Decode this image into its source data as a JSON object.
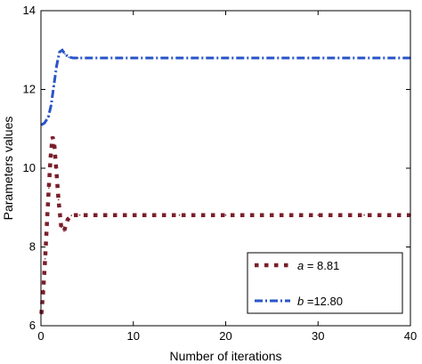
{
  "chart_data": {
    "type": "line",
    "title": "",
    "xlabel": "Number of iterations",
    "ylabel": "Parameters values",
    "xlim": [
      0,
      40
    ],
    "ylim": [
      6,
      14
    ],
    "xticks": [
      0,
      10,
      20,
      30,
      40
    ],
    "yticks": [
      6,
      8,
      10,
      12,
      14
    ],
    "grid": false,
    "legend_position": "bottom-right",
    "series": [
      {
        "name_var": "a",
        "name_rest": " = 8.81",
        "color": "#7a1f2b",
        "style": "dotted-squares",
        "x": [
          0.05,
          0.25,
          0.45,
          0.65,
          0.85,
          1.05,
          1.25,
          1.45,
          1.65,
          1.9,
          2.2,
          2.5,
          2.9,
          3.3,
          3.7,
          4.2,
          6,
          10,
          15,
          20,
          25,
          30,
          35,
          40
        ],
        "y": [
          6.3,
          6.9,
          7.7,
          8.6,
          9.5,
          10.3,
          10.8,
          10.6,
          10.0,
          9.2,
          8.5,
          8.4,
          8.7,
          8.8,
          8.81,
          8.81,
          8.81,
          8.81,
          8.81,
          8.81,
          8.81,
          8.81,
          8.81,
          8.81
        ]
      },
      {
        "name_var": "b",
        "name_rest": " =12.80",
        "color": "#2a55c8",
        "style": "dash-dot",
        "x": [
          0.05,
          0.4,
          0.8,
          1.1,
          1.4,
          1.7,
          2.0,
          2.3,
          2.6,
          3.0,
          3.5,
          4.0,
          5,
          10,
          15,
          20,
          25,
          30,
          35,
          40
        ],
        "y": [
          11.1,
          11.15,
          11.3,
          11.6,
          12.1,
          12.6,
          12.95,
          13.0,
          12.9,
          12.82,
          12.8,
          12.8,
          12.8,
          12.8,
          12.8,
          12.8,
          12.8,
          12.8,
          12.8,
          12.8
        ]
      }
    ]
  }
}
